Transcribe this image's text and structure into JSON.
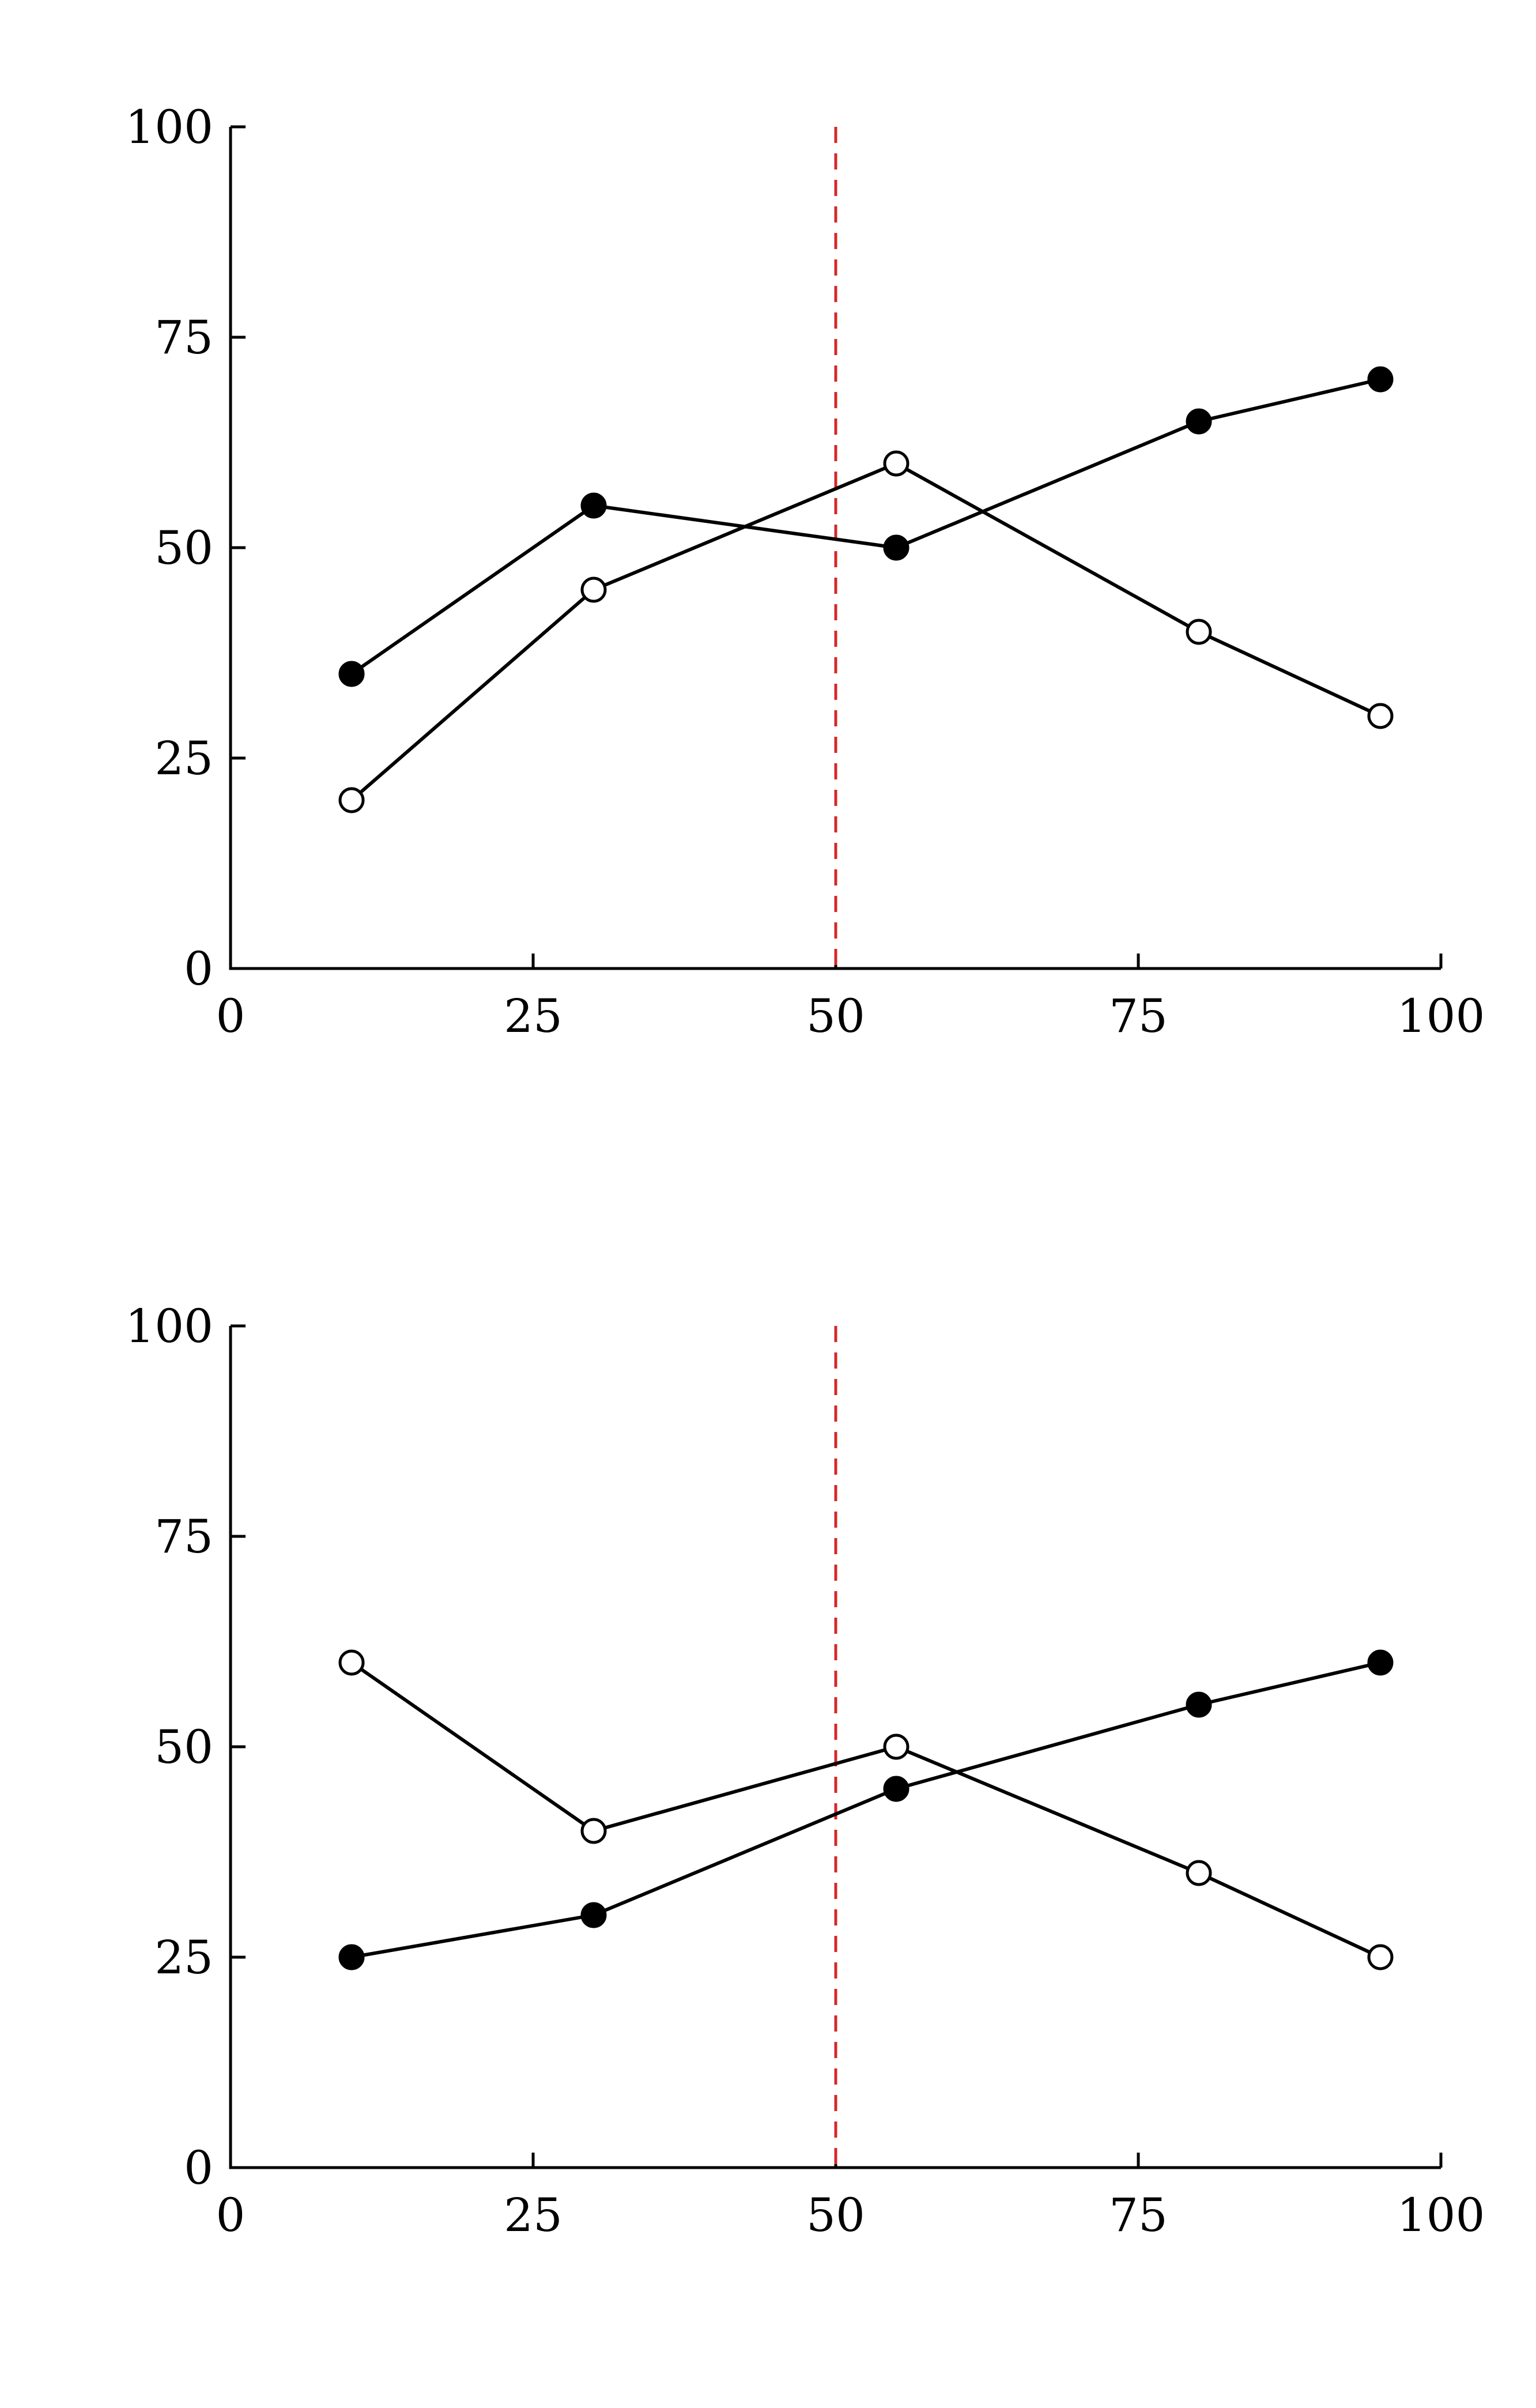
{
  "chart_data": [
    {
      "type": "line",
      "title": "",
      "xlabel": "",
      "ylabel": "",
      "xlim": [
        0,
        100
      ],
      "ylim": [
        0,
        100
      ],
      "xticks": [
        0,
        25,
        50,
        75,
        100
      ],
      "yticks": [
        0,
        25,
        50,
        75,
        100
      ],
      "dividers": [
        50
      ],
      "series": [
        {
          "marker": "open-circle",
          "values": [
            [
              10,
              20
            ],
            [
              30,
              45
            ],
            [
              55,
              60
            ],
            [
              80,
              40
            ],
            [
              95,
              30
            ]
          ]
        },
        {
          "marker": "filled-circle",
          "values": [
            [
              10,
              35
            ],
            [
              30,
              55
            ],
            [
              55,
              50
            ],
            [
              80,
              65
            ],
            [
              95,
              70
            ]
          ]
        }
      ]
    },
    {
      "type": "line",
      "title": "",
      "xlabel": "",
      "ylabel": "",
      "xlim": [
        0,
        100
      ],
      "ylim": [
        0,
        100
      ],
      "xticks": [
        0,
        25,
        50,
        75,
        100
      ],
      "yticks": [
        0,
        25,
        50,
        75,
        100
      ],
      "dividers": [
        50
      ],
      "series": [
        {
          "marker": "open-circle",
          "values": [
            [
              10,
              60
            ],
            [
              30,
              40
            ],
            [
              55,
              50
            ],
            [
              80,
              35
            ],
            [
              95,
              25
            ]
          ]
        },
        {
          "marker": "filled-circle",
          "values": [
            [
              10,
              25
            ],
            [
              30,
              30
            ],
            [
              55,
              45
            ],
            [
              80,
              55
            ],
            [
              95,
              60
            ]
          ]
        }
      ]
    }
  ]
}
